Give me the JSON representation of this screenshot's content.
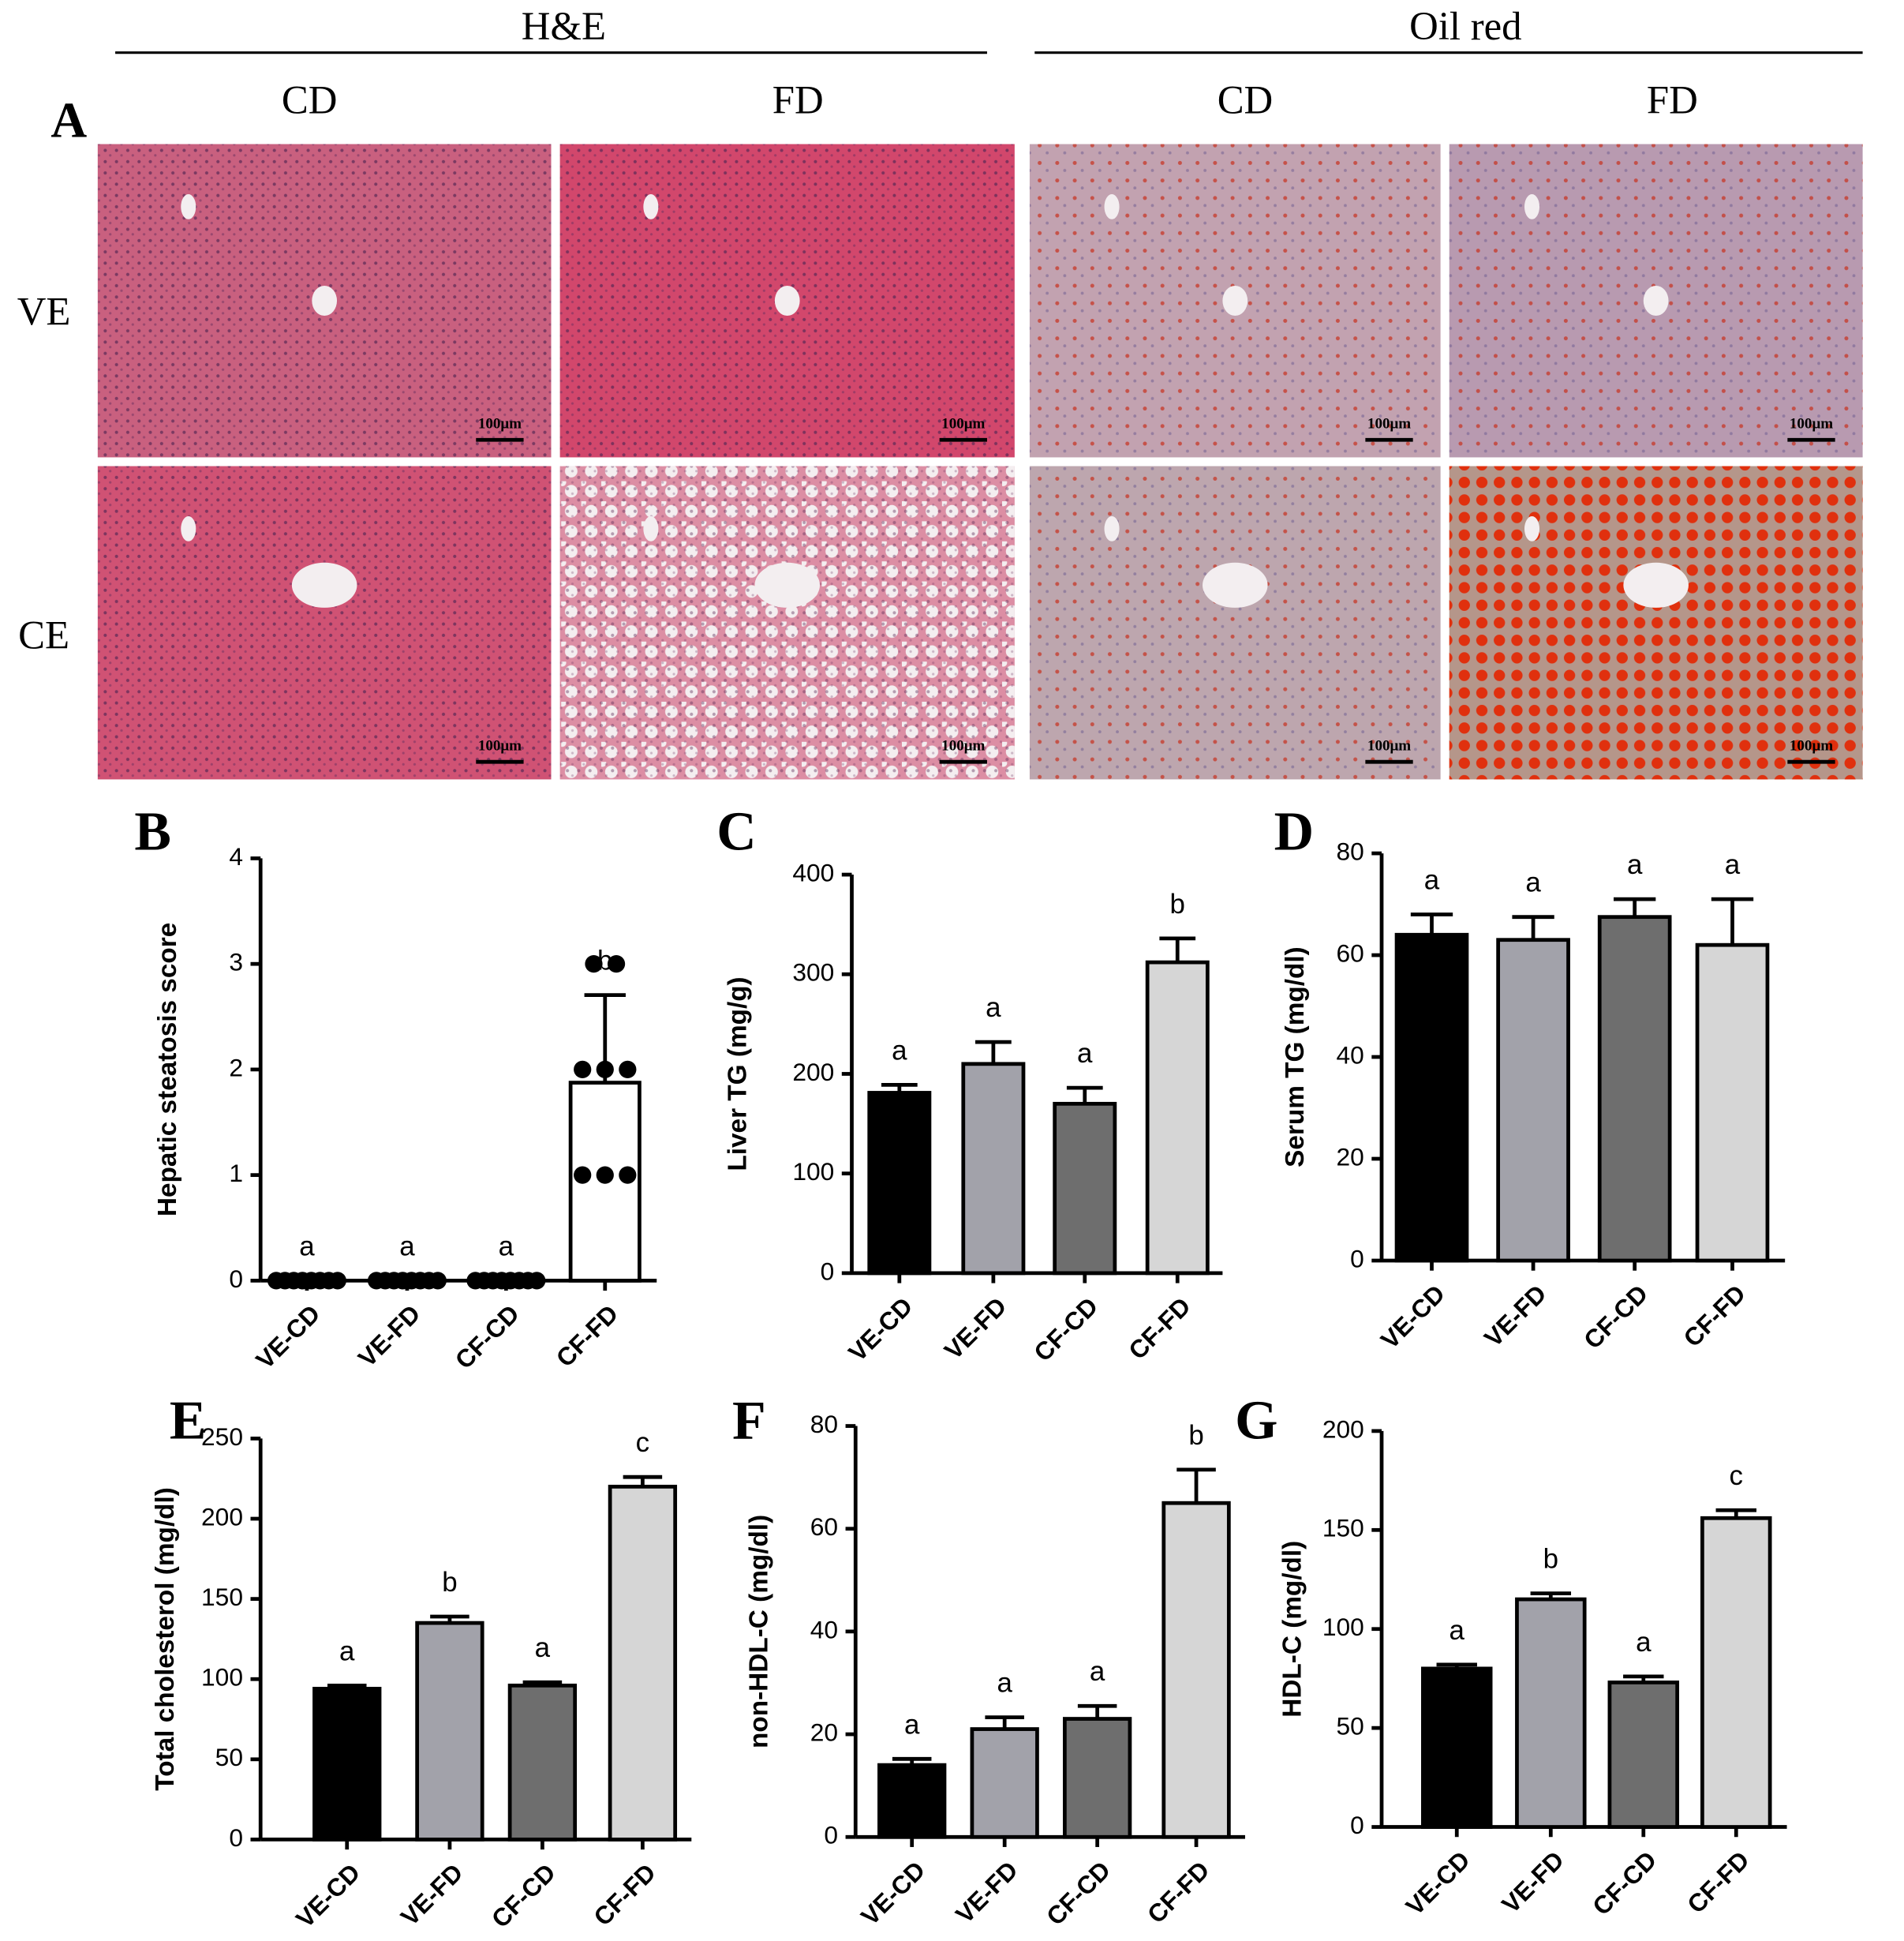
{
  "panel_a": {
    "label": "A",
    "stains": [
      {
        "name": "H&E",
        "columns": [
          "CD",
          "FD"
        ]
      },
      {
        "name": "Oil red",
        "columns": [
          "CD",
          "FD"
        ]
      }
    ],
    "rows": [
      "VE",
      "CE"
    ],
    "scale_bar": "100μm"
  },
  "chart_data": [
    {
      "type": "bar",
      "panel": "B",
      "ylabel": "Hepatic steatosis score",
      "categories": [
        "VE-CD",
        "VE-FD",
        "CF-CD",
        "CF-FD"
      ],
      "values": [
        0,
        0,
        0,
        1.875
      ],
      "errors": [
        0,
        0,
        0,
        0.83
      ],
      "points": [
        [
          0,
          0,
          0,
          0,
          0,
          0,
          0,
          0
        ],
        [
          0,
          0,
          0,
          0,
          0,
          0,
          0,
          0
        ],
        [
          0,
          0,
          0,
          0,
          0,
          0,
          0,
          0
        ],
        [
          3,
          3,
          2,
          2,
          2,
          1,
          1,
          1
        ]
      ],
      "annotations": [
        "a",
        "a",
        "a",
        "b"
      ],
      "colors": [
        "#ffffff",
        "#ffffff",
        "#ffffff",
        "#ffffff"
      ],
      "ylim": [
        0,
        4
      ],
      "yticks": [
        0,
        1,
        2,
        3,
        4
      ]
    },
    {
      "type": "bar",
      "panel": "C",
      "ylabel": "Liver TG (mg/g)",
      "categories": [
        "VE-CD",
        "VE-FD",
        "CF-CD",
        "CF-FD"
      ],
      "values": [
        181,
        210,
        170,
        312
      ],
      "errors": [
        8,
        22,
        16,
        24
      ],
      "annotations": [
        "a",
        "a",
        "a",
        "b"
      ],
      "colors": [
        "#000000",
        "#a2a2aa",
        "#6e6e6e",
        "#d6d6d6"
      ],
      "ylim": [
        0,
        400
      ],
      "yticks": [
        0,
        100,
        200,
        300,
        400
      ]
    },
    {
      "type": "bar",
      "panel": "D",
      "ylabel": "Serum TG (mg/dl)",
      "categories": [
        "VE-CD",
        "VE-FD",
        "CF-CD",
        "CF-FD"
      ],
      "values": [
        64,
        63,
        67.5,
        62
      ],
      "errors": [
        4,
        4.5,
        3.5,
        9
      ],
      "annotations": [
        "a",
        "a",
        "a",
        "a"
      ],
      "colors": [
        "#000000",
        "#a2a2aa",
        "#6e6e6e",
        "#d6d6d6"
      ],
      "ylim": [
        0,
        80
      ],
      "yticks": [
        0,
        20,
        40,
        60,
        80
      ]
    },
    {
      "type": "bar",
      "panel": "E",
      "ylabel": "Total cholesterol (mg/dl)",
      "categories": [
        "VE-CD",
        "VE-FD",
        "CF-CD",
        "CF-FD"
      ],
      "values": [
        94,
        135,
        96,
        220
      ],
      "errors": [
        2,
        4,
        2,
        6
      ],
      "annotations": [
        "a",
        "b",
        "a",
        "c"
      ],
      "colors": [
        "#000000",
        "#a2a2aa",
        "#6e6e6e",
        "#d6d6d6"
      ],
      "ylim": [
        0,
        250
      ],
      "yticks": [
        0,
        50,
        100,
        150,
        200,
        250
      ]
    },
    {
      "type": "bar",
      "panel": "F",
      "ylabel": "non-HDL-C (mg/dl)",
      "categories": [
        "VE-CD",
        "VE-FD",
        "CF-CD",
        "CF-FD"
      ],
      "values": [
        14,
        21,
        23,
        65
      ],
      "errors": [
        1.2,
        2.3,
        2.5,
        6.5
      ],
      "annotations": [
        "a",
        "a",
        "a",
        "b"
      ],
      "colors": [
        "#000000",
        "#a2a2aa",
        "#6e6e6e",
        "#d6d6d6"
      ],
      "ylim": [
        0,
        80
      ],
      "yticks": [
        0,
        20,
        40,
        60,
        80
      ]
    },
    {
      "type": "bar",
      "panel": "G",
      "ylabel": "HDL-C (mg/dl)",
      "categories": [
        "VE-CD",
        "VE-FD",
        "CF-CD",
        "CF-FD"
      ],
      "values": [
        80,
        115,
        73,
        156
      ],
      "errors": [
        2,
        3,
        3,
        4
      ],
      "annotations": [
        "a",
        "b",
        "a",
        "c"
      ],
      "colors": [
        "#000000",
        "#a2a2aa",
        "#6e6e6e",
        "#d6d6d6"
      ],
      "ylim": [
        0,
        200
      ],
      "yticks": [
        0,
        50,
        100,
        150,
        200
      ]
    }
  ]
}
